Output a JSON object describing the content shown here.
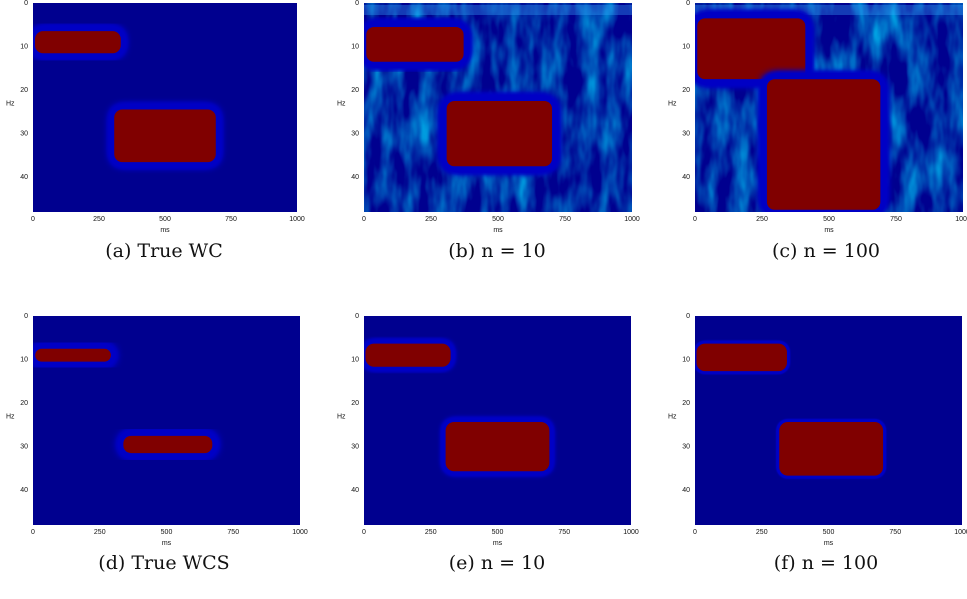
{
  "colors": {
    "background": "#00008f",
    "saturated": "#800000",
    "axis": "#111111"
  },
  "chart_data": [
    {
      "type": "heatmap",
      "panel": "a",
      "caption": "(a) True WC",
      "xlabel": "ms",
      "ylabel": "Hz",
      "xlim": [
        0,
        1000
      ],
      "ylim": [
        0,
        48
      ],
      "y_inverted": true,
      "x_ticks": [
        "0",
        "250",
        "500",
        "750",
        "1000"
      ],
      "y_ticks": [
        "0",
        "10",
        "20",
        "30",
        "40"
      ],
      "colormap": "jet",
      "regions": [
        {
          "x": [
            0,
            340
          ],
          "y": [
            6,
            12
          ],
          "level": "saturated"
        },
        {
          "x": [
            300,
            700
          ],
          "y": [
            24,
            37
          ],
          "level": "saturated"
        }
      ]
    },
    {
      "type": "heatmap",
      "panel": "b",
      "caption": "(b) n = 10",
      "xlabel": "ms",
      "ylabel": "Hz",
      "xlim": [
        0,
        1000
      ],
      "ylim": [
        0,
        48
      ],
      "y_inverted": true,
      "x_ticks": [
        "0",
        "250",
        "500",
        "750",
        "1000"
      ],
      "y_ticks": [
        "0",
        "10",
        "20",
        "30",
        "40"
      ],
      "colormap": "jet",
      "regions": [
        {
          "x": [
            0,
            380
          ],
          "y": [
            5,
            14
          ],
          "level": "saturated"
        },
        {
          "x": [
            300,
            710
          ],
          "y": [
            22,
            38
          ],
          "level": "saturated"
        }
      ]
    },
    {
      "type": "heatmap",
      "panel": "c",
      "caption": "(c) n = 100",
      "xlabel": "ms",
      "ylabel": "Hz",
      "xlim": [
        0,
        1000
      ],
      "ylim": [
        0,
        48
      ],
      "y_inverted": true,
      "x_ticks": [
        "0",
        "250",
        "500",
        "750",
        "1000"
      ],
      "y_ticks": [
        "0",
        "10",
        "20",
        "30",
        "40"
      ],
      "colormap": "jet",
      "regions": [
        {
          "x": [
            0,
            420
          ],
          "y": [
            3,
            18
          ],
          "level": "saturated"
        },
        {
          "x": [
            260,
            700
          ],
          "y": [
            17,
            48
          ],
          "level": "saturated"
        }
      ]
    },
    {
      "type": "heatmap",
      "panel": "d",
      "caption": "(d) True WCS",
      "xlabel": "ms",
      "ylabel": "Hz",
      "xlim": [
        0,
        1000
      ],
      "ylim": [
        0,
        48
      ],
      "y_inverted": true,
      "x_ticks": [
        "0",
        "250",
        "500",
        "750",
        "1000"
      ],
      "y_ticks": [
        "0",
        "10",
        "20",
        "30",
        "40"
      ],
      "colormap": "jet",
      "regions": [
        {
          "x": [
            0,
            300
          ],
          "y": [
            7,
            11
          ],
          "level": "saturated"
        },
        {
          "x": [
            330,
            680
          ],
          "y": [
            27,
            32
          ],
          "level": "saturated"
        }
      ]
    },
    {
      "type": "heatmap",
      "panel": "e",
      "caption": "(e) n = 10",
      "xlabel": "ms",
      "ylabel": "Hz",
      "xlim": [
        0,
        1000
      ],
      "ylim": [
        0,
        48
      ],
      "y_inverted": true,
      "x_ticks": [
        "0",
        "250",
        "500",
        "750",
        "1000"
      ],
      "y_ticks": [
        "0",
        "10",
        "20",
        "30",
        "40"
      ],
      "colormap": "jet",
      "regions": [
        {
          "x": [
            0,
            330
          ],
          "y": [
            6,
            12
          ],
          "level": "saturated"
        },
        {
          "x": [
            300,
            700
          ],
          "y": [
            24,
            36
          ],
          "level": "saturated"
        }
      ]
    },
    {
      "type": "heatmap",
      "panel": "f",
      "caption": "(f) n = 100",
      "xlabel": "ms",
      "ylabel": "Hz",
      "xlim": [
        0,
        1000
      ],
      "ylim": [
        0,
        48
      ],
      "y_inverted": true,
      "x_ticks": [
        "0",
        "250",
        "500",
        "750",
        "1000"
      ],
      "y_ticks": [
        "0",
        "10",
        "20",
        "30",
        "40"
      ],
      "colormap": "jet",
      "regions": [
        {
          "x": [
            0,
            350
          ],
          "y": [
            6,
            13
          ],
          "level": "saturated"
        },
        {
          "x": [
            310,
            710
          ],
          "y": [
            24,
            37
          ],
          "level": "saturated"
        }
      ]
    }
  ]
}
